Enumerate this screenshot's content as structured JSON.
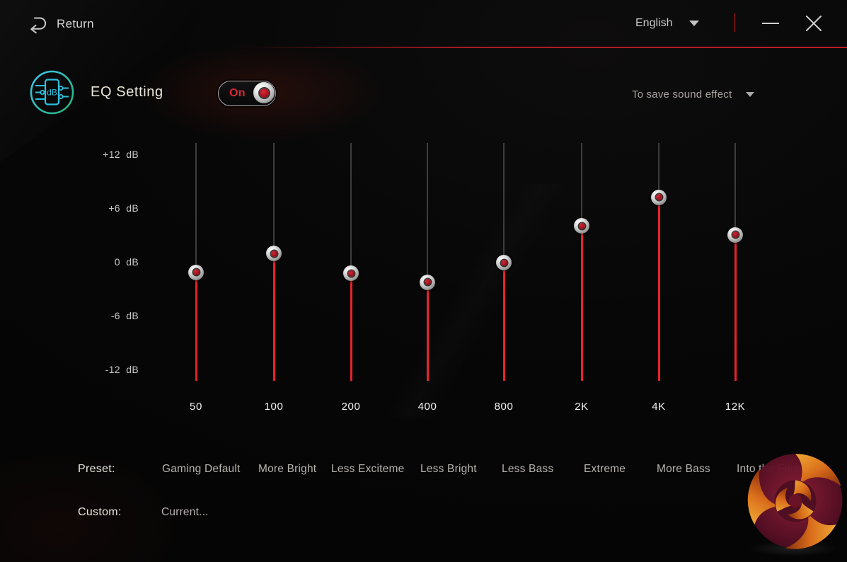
{
  "titlebar": {
    "return_label": "Return",
    "language": "English"
  },
  "header": {
    "title": "EQ Setting",
    "toggle_state": "On",
    "save_dropdown": "To save sound effect"
  },
  "eq": {
    "scale_labels": [
      "+12  dB",
      "+6  dB",
      "0  dB",
      "-6  dB",
      "-12  dB"
    ],
    "axis": {
      "max_db": 12,
      "min_db": -12
    },
    "bands": [
      {
        "freq": "50",
        "db": -1.1
      },
      {
        "freq": "100",
        "db": 1.0
      },
      {
        "freq": "200",
        "db": -1.2
      },
      {
        "freq": "400",
        "db": -2.2
      },
      {
        "freq": "800",
        "db": 0.0
      },
      {
        "freq": "2K",
        "db": 4.1
      },
      {
        "freq": "4K",
        "db": 7.3
      },
      {
        "freq": "12K",
        "db": 3.1
      }
    ]
  },
  "presets": {
    "label": "Preset:",
    "options": [
      "Gaming Default",
      "More Bright",
      "Less Exciteme",
      "Less Bright",
      "Less Bass",
      "Extreme",
      "More Bass",
      "Into the Forest"
    ]
  },
  "custom": {
    "label": "Custom:",
    "options": [
      "Current..."
    ]
  },
  "colors": {
    "accent_red": "#bd1d27",
    "slider_red": "#e8222c",
    "track_grey": "#3d3d3d",
    "toggle_on_red": "#d7273a",
    "icon_teal": "#2ec0de"
  }
}
